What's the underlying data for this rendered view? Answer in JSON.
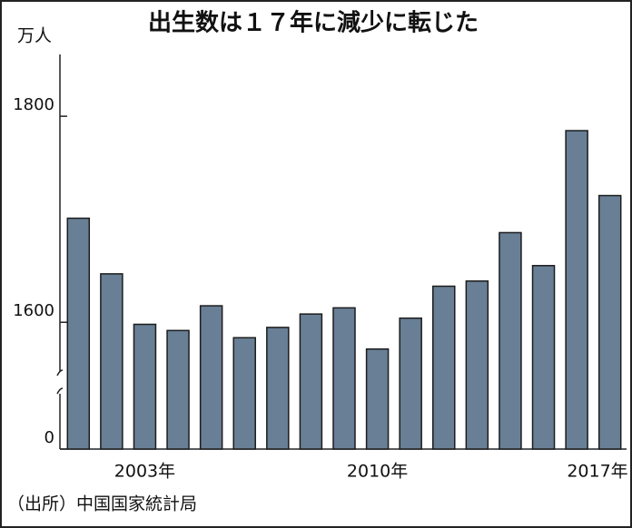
{
  "chart_data": {
    "type": "bar",
    "title": "出生数は１７年に減少に転じた",
    "y_unit": "万人",
    "source": "（出所）中国国家統計局",
    "categories": [
      null,
      null,
      "2003年",
      null,
      null,
      null,
      null,
      null,
      null,
      "2010年",
      null,
      null,
      null,
      null,
      null,
      null,
      "2017年"
    ],
    "values": [
      1701,
      1647,
      1598,
      1592,
      1616,
      1585,
      1595,
      1608,
      1614,
      1574,
      1604,
      1635,
      1640,
      1687,
      1655,
      1786,
      1723
    ],
    "color": "#687f96",
    "ylim": [
      0,
      1860
    ],
    "axis_break": [
      0,
      1550
    ],
    "yticks": [
      0,
      1600,
      1800
    ]
  }
}
